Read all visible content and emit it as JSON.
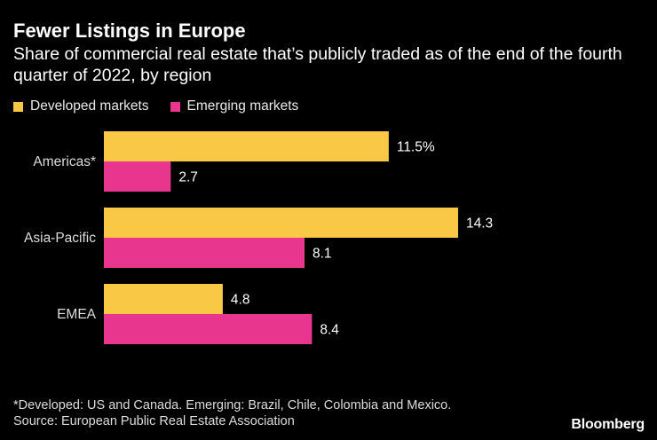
{
  "chart_data": {
    "type": "bar",
    "orientation": "horizontal",
    "title": "Fewer Listings in Europe",
    "subtitle": "Share of commercial real estate that’s publicly traded as of the end of the fourth quarter of 2022, by region",
    "categories": [
      "Americas*",
      "Asia-Pacific",
      "EMEA"
    ],
    "series": [
      {
        "name": "Developed markets",
        "color": "#f9c844",
        "values": [
          11.5,
          14.3,
          4.8
        ],
        "labels": [
          "11.5%",
          "14.3",
          "4.8"
        ]
      },
      {
        "name": "Emerging markets",
        "color": "#e8368f",
        "values": [
          2.7,
          8.1,
          8.4
        ],
        "labels": [
          "2.7",
          "8.1",
          "8.4"
        ]
      }
    ],
    "xlim": [
      0,
      20
    ],
    "grid": false,
    "legend_position": "top-left"
  },
  "footnote": "*Developed: US and Canada. Emerging: Brazil, Chile, Colombia and Mexico.",
  "source": "Source: European Public Real Estate Association",
  "brand": "Bloomberg"
}
